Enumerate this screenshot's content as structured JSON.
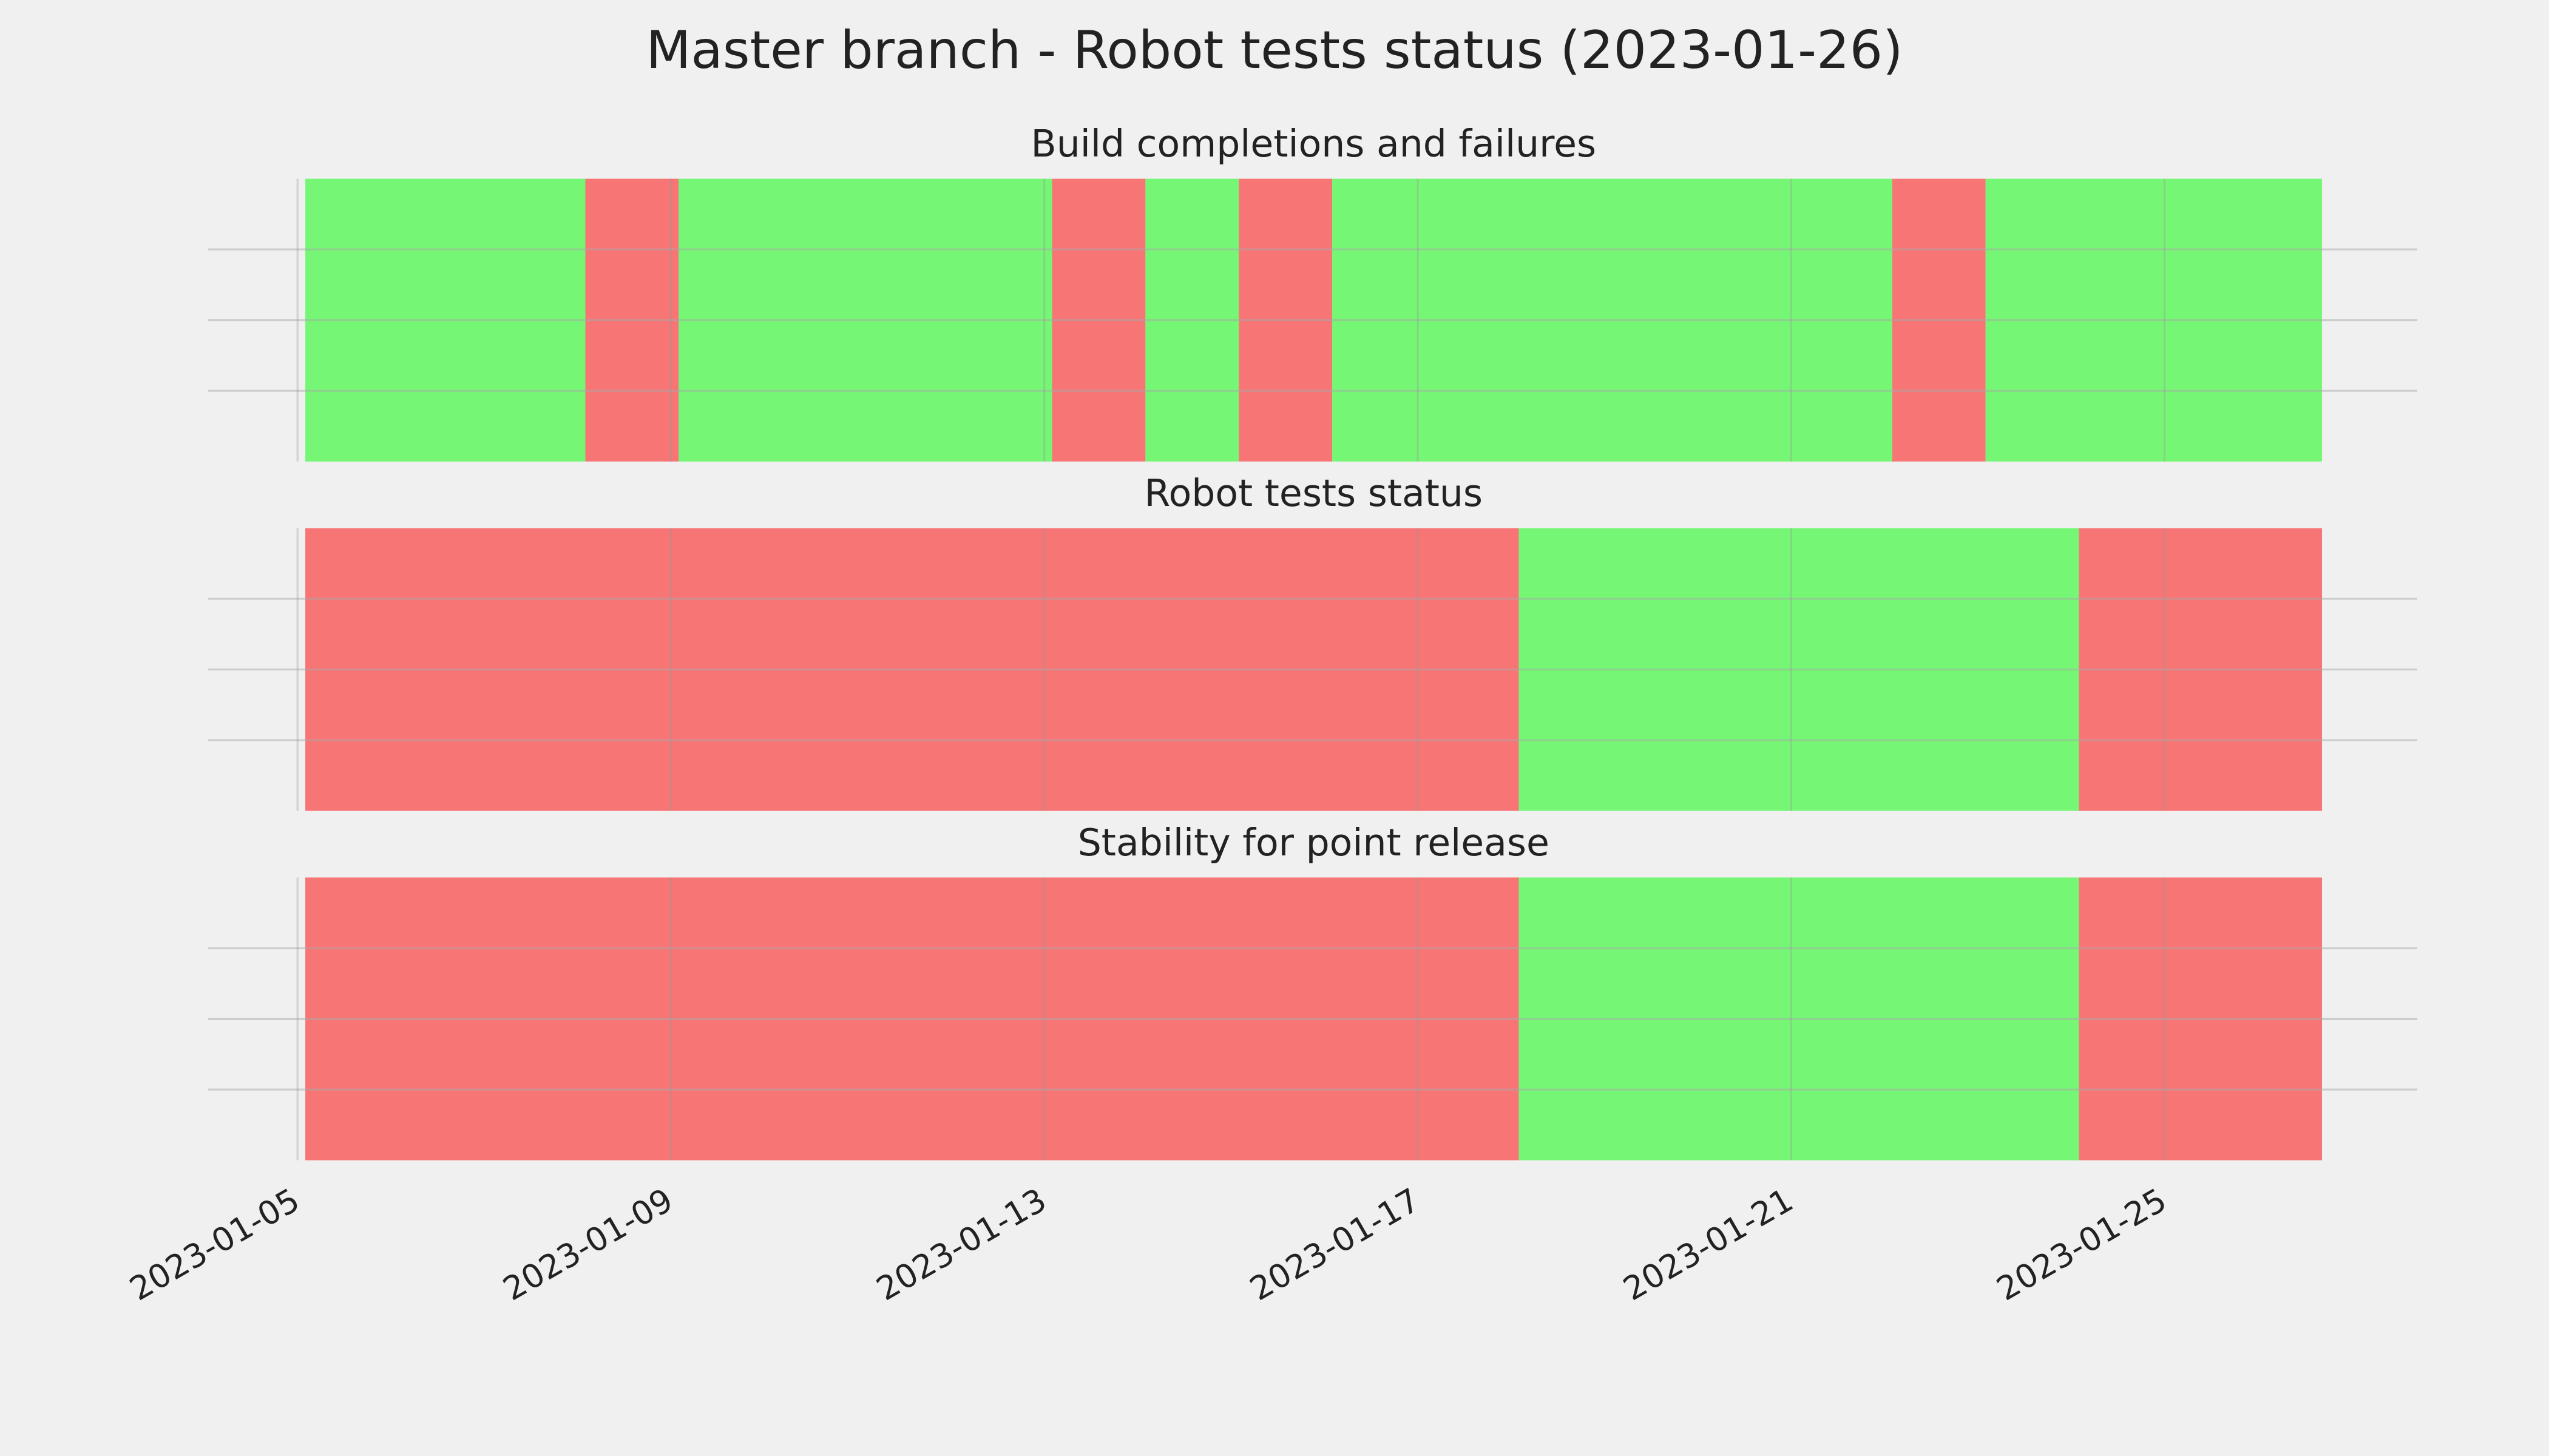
{
  "title": "Master branch - Robot tests status (2023-01-26)",
  "chart_data": [
    {
      "type": "timeline",
      "title": "Build completions and failures",
      "starts": [
        "2023-01-05T02:00",
        "2023-01-08T02:00",
        "2023-01-09T02:00",
        "2023-01-13T02:00",
        "2023-01-14T02:00",
        "2023-01-15T02:00",
        "2023-01-16T02:00",
        "2023-01-22T02:00",
        "2023-01-23T02:00"
      ],
      "ends": [
        "2023-01-08T02:00",
        "2023-01-09T02:00",
        "2023-01-13T02:00",
        "2023-01-14T02:00",
        "2023-01-15T02:00",
        "2023-01-16T02:00",
        "2023-01-22T02:00",
        "2023-01-23T02:00",
        "2023-01-26T16:30"
      ],
      "colors": [
        "#75f775",
        "#f77575",
        "#75f775",
        "#f77575",
        "#75f775",
        "#f77575",
        "#75f775",
        "#f77575",
        "#75f775"
      ],
      "xlim": [
        "2023-01-04T01:00",
        "2023-01-27T17:00"
      ],
      "xticks": [
        "2023-01-05",
        "2023-01-09",
        "2023-01-13",
        "2023-01-17",
        "2023-01-21",
        "2023-01-25"
      ],
      "grid": true
    },
    {
      "type": "timeline",
      "title": "Robot tests status",
      "starts": [
        "2023-01-05T02:00",
        "2023-01-18T02:00",
        "2023-01-24T02:00"
      ],
      "ends": [
        "2023-01-18T02:00",
        "2023-01-24T02:00",
        "2023-01-26T16:30"
      ],
      "colors": [
        "#f77575",
        "#75f775",
        "#f77575"
      ],
      "xlim": [
        "2023-01-04T01:00",
        "2023-01-27T17:00"
      ],
      "xticks": [
        "2023-01-05",
        "2023-01-09",
        "2023-01-13",
        "2023-01-17",
        "2023-01-21",
        "2023-01-25"
      ],
      "grid": true
    },
    {
      "type": "timeline",
      "title": "Stability for point release",
      "starts": [
        "2023-01-05T02:00",
        "2023-01-18T02:00",
        "2023-01-24T02:00"
      ],
      "ends": [
        "2023-01-18T02:00",
        "2023-01-24T02:00",
        "2023-01-26T16:30"
      ],
      "colors": [
        "#f77575",
        "#75f775",
        "#f77575"
      ],
      "xlim": [
        "2023-01-04T01:00",
        "2023-01-27T17:00"
      ],
      "xticks": [
        "2023-01-05",
        "2023-01-09",
        "2023-01-13",
        "2023-01-17",
        "2023-01-21",
        "2023-01-25"
      ],
      "grid": true,
      "show_xtick_labels": true
    }
  ]
}
